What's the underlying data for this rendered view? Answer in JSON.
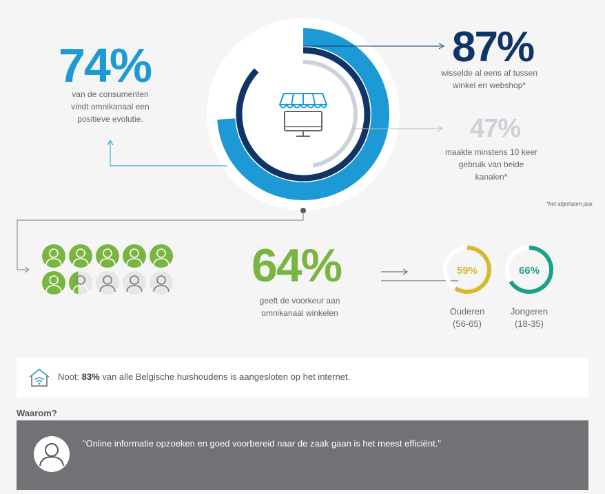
{
  "stat_74": {
    "value": "74%",
    "caption": [
      "van de consumenten",
      "vindt omnikanaal een",
      "positieve evolutie."
    ]
  },
  "stat_87": {
    "value": "87%",
    "caption": [
      "wisselde al eens af tussen",
      "winkel en webshop*"
    ]
  },
  "stat_47": {
    "value": "47%",
    "caption": [
      "maakte minstens 10 keer",
      "gebruik van beide",
      "kanalen*"
    ]
  },
  "footnote": "*het afgelopen jaar",
  "stat_64": {
    "value": "64%",
    "caption": [
      "geeft de voorkeur aan",
      "omnikanaal winkelen"
    ]
  },
  "groups": [
    {
      "value": "59%",
      "label": "Ouderen",
      "range": "(56-65)"
    },
    {
      "value": "66%",
      "label": "Jongeren",
      "range": "(18-35)"
    }
  ],
  "note": {
    "prefix": "Noot:",
    "highlight": "83%",
    "text": "van alle Belgische huishoudens is aangesloten op het internet."
  },
  "waarom": {
    "title": "Waarom?",
    "quote": "\"Online informatie opzoeken en goed voorbereid naar de zaak gaan is het meest efficiënt.\""
  },
  "colors": {
    "light_blue": "#1d9ad6",
    "dark_blue": "#0f3466",
    "grey": "#ccd1d9",
    "green": "#7ab542",
    "yellow": "#d8b92b",
    "teal": "#1aa08a"
  },
  "chart_data": [
    {
      "type": "pie",
      "series": [
        {
          "name": "",
          "values": [
            74
          ]
        },
        {
          "name": "",
          "values": [
            87
          ]
        },
        {
          "name": "",
          "values": [
            47
          ]
        }
      ]
    },
    {
      "type": "pie",
      "values": [
        64
      ],
      "total_icons": 10,
      "filled_icons": 6.4
    },
    {
      "type": "pie",
      "categories": [
        "Ouderen",
        "Jongeren"
      ],
      "values": [
        59,
        66
      ]
    }
  ]
}
